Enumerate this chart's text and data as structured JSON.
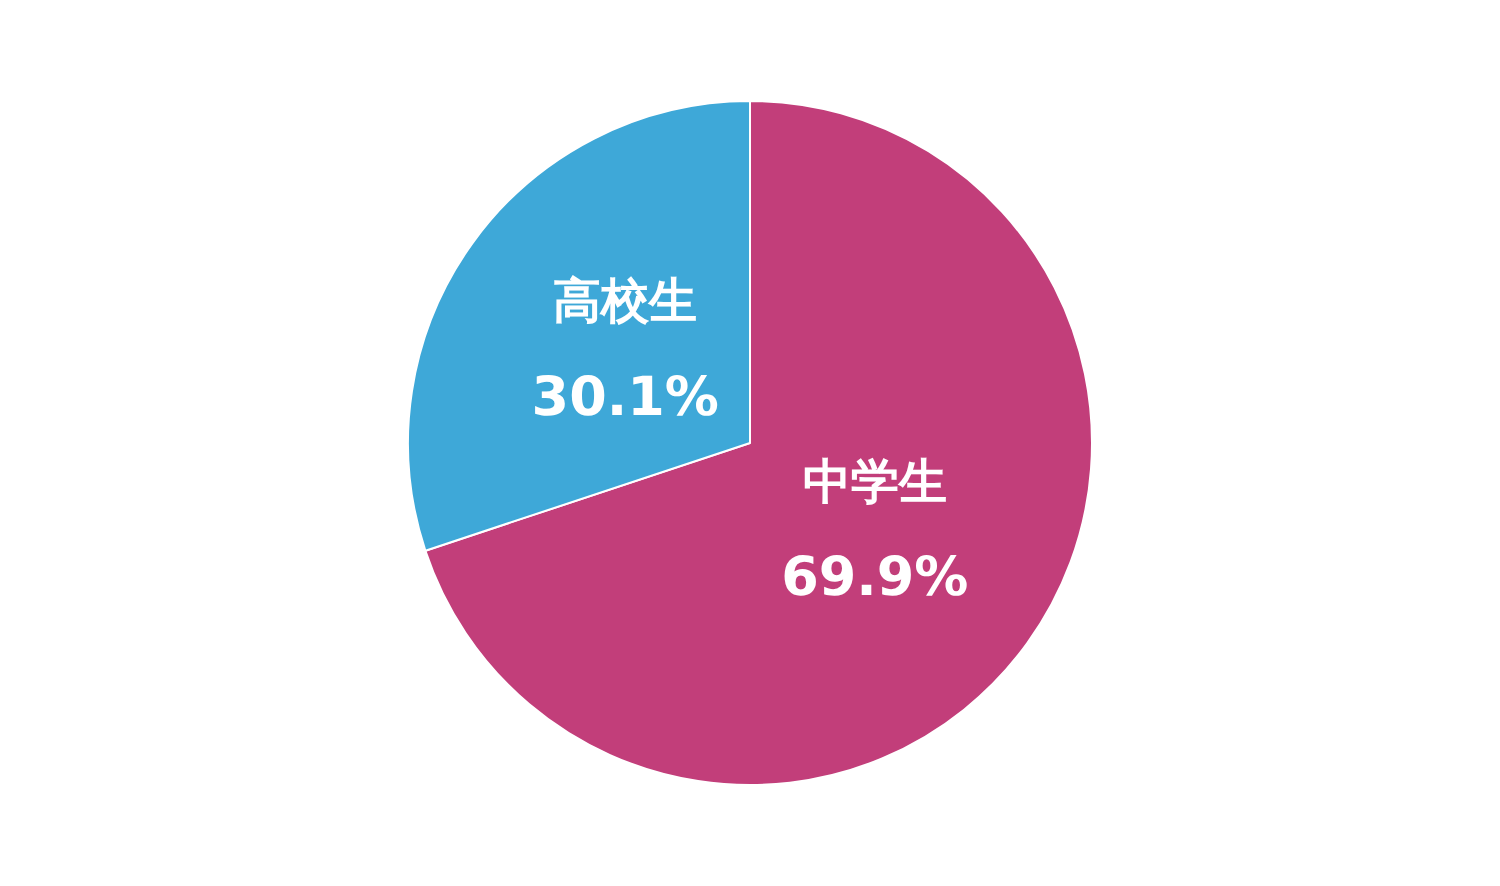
{
  "chart_data": {
    "type": "pie",
    "categories": [
      "中学生",
      "高校生"
    ],
    "values": [
      69.9,
      30.1
    ],
    "colors": [
      "#c23e7a",
      "#3ea8d8"
    ],
    "value_labels": [
      "69.9%",
      "30.1%"
    ],
    "legend": false
  }
}
